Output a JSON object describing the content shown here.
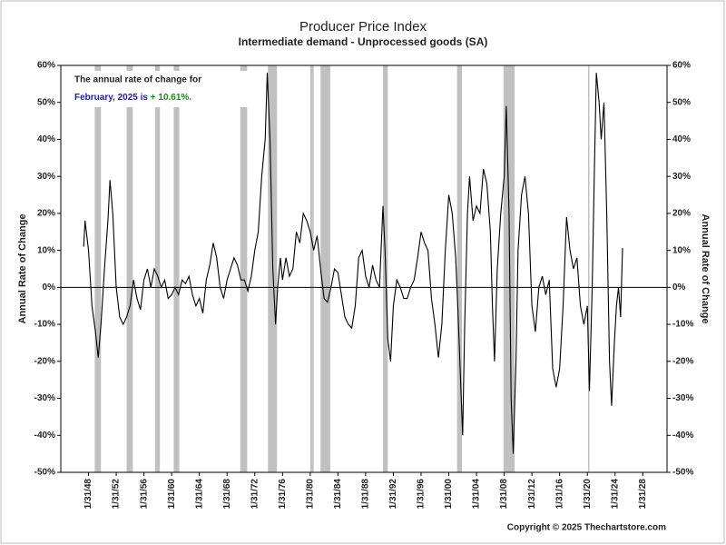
{
  "chart_data": {
    "type": "line",
    "title": "Producer Price Index",
    "subtitle": "Intermediate demand - Unprocessed goods (SA)",
    "y_label": "Annual Rate of Change",
    "y2_label": "Annual Rate of Change",
    "copyright": "Copyright © 2025 Thechartstore.com",
    "annotation": {
      "lines": [
        "The annual rate of change for",
        "February, 2025 is"
      ],
      "value_text": "+ 10.61%.",
      "color": "#1a1adf",
      "value_color": "#109010"
    },
    "xlim": [
      1944,
      2031.5
    ],
    "xticks": [
      {
        "value": 1948,
        "label": "1/31/48"
      },
      {
        "value": 1952,
        "label": "1/31/52"
      },
      {
        "value": 1956,
        "label": "1/31/56"
      },
      {
        "value": 1960,
        "label": "1/31/60"
      },
      {
        "value": 1964,
        "label": "1/31/64"
      },
      {
        "value": 1968,
        "label": "1/31/68"
      },
      {
        "value": 1972,
        "label": "1/31/72"
      },
      {
        "value": 1976,
        "label": "1/31/76"
      },
      {
        "value": 1980,
        "label": "1/31/80"
      },
      {
        "value": 1984,
        "label": "1/31/84"
      },
      {
        "value": 1988,
        "label": "1/31/88"
      },
      {
        "value": 1992,
        "label": "1/31/92"
      },
      {
        "value": 1996,
        "label": "1/31/96"
      },
      {
        "value": 2000,
        "label": "1/31/00"
      },
      {
        "value": 2004,
        "label": "1/31/04"
      },
      {
        "value": 2008,
        "label": "1/31/08"
      },
      {
        "value": 2012,
        "label": "1/31/12"
      },
      {
        "value": 2016,
        "label": "1/31/16"
      },
      {
        "value": 2020,
        "label": "1/31/20"
      },
      {
        "value": 2024,
        "label": "1/31/24"
      },
      {
        "value": 2028,
        "label": "1/31/28"
      }
    ],
    "ylim": [
      -50,
      60
    ],
    "yticks": [
      {
        "value": -50,
        "label": "-50%"
      },
      {
        "value": -40,
        "label": "-40%"
      },
      {
        "value": -30,
        "label": "-30%"
      },
      {
        "value": -20,
        "label": "-20%"
      },
      {
        "value": -10,
        "label": "-10%"
      },
      {
        "value": 0,
        "label": "0%"
      },
      {
        "value": 10,
        "label": "10%"
      },
      {
        "value": 20,
        "label": "20%"
      },
      {
        "value": 30,
        "label": "30%"
      },
      {
        "value": 40,
        "label": "40%"
      },
      {
        "value": 50,
        "label": "50%"
      },
      {
        "value": 60,
        "label": "60%"
      }
    ],
    "y2lim": [
      -50,
      60
    ],
    "y2ticks": [
      {
        "value": -50,
        "label": "-50%"
      },
      {
        "value": -40,
        "label": "-40%"
      },
      {
        "value": -30,
        "label": "-30%"
      },
      {
        "value": -20,
        "label": "-20%"
      },
      {
        "value": -10,
        "label": "-10%"
      },
      {
        "value": 0,
        "label": "0%"
      },
      {
        "value": 10,
        "label": "10%"
      },
      {
        "value": 20,
        "label": "20%"
      },
      {
        "value": 30,
        "label": "30%"
      },
      {
        "value": 40,
        "label": "40%"
      },
      {
        "value": 50,
        "label": "50%"
      },
      {
        "value": 60,
        "label": "60%"
      }
    ],
    "recession_color": "#c0c0c0",
    "recessions": [
      [
        1948.9,
        1949.8
      ],
      [
        1953.5,
        1954.4
      ],
      [
        1957.6,
        1958.3
      ],
      [
        1960.3,
        1961.1
      ],
      [
        1969.9,
        1970.9
      ],
      [
        1973.9,
        1975.2
      ],
      [
        1980,
        1980.5
      ],
      [
        1981.5,
        1982.9
      ],
      [
        1990.5,
        1991.2
      ],
      [
        2001.2,
        2001.9
      ],
      [
        2007.9,
        2009.5
      ],
      [
        2020.1,
        2020.3
      ]
    ],
    "series": [
      {
        "color": "#000000",
        "x": [
          1947.3,
          1947.5,
          1948,
          1948.5,
          1949,
          1949.4,
          1949.8,
          1950.3,
          1950.8,
          1951.1,
          1951.5,
          1952,
          1952.5,
          1953,
          1953.5,
          1954,
          1954.5,
          1955,
          1955.5,
          1956,
          1956.5,
          1957,
          1957.5,
          1958,
          1958.5,
          1959,
          1959.5,
          1960,
          1960.5,
          1961,
          1961.5,
          1962,
          1962.5,
          1963,
          1963.5,
          1964,
          1964.5,
          1965,
          1965.5,
          1966,
          1966.5,
          1967,
          1967.5,
          1968,
          1968.5,
          1969,
          1969.5,
          1970,
          1970.5,
          1971,
          1971.5,
          1972,
          1972.5,
          1973,
          1973.5,
          1973.8,
          1974.2,
          1974.6,
          1975,
          1975.3,
          1975.7,
          1976,
          1976.5,
          1977,
          1977.5,
          1978,
          1978.5,
          1979,
          1979.5,
          1980,
          1980.5,
          1981,
          1981.5,
          1982,
          1982.5,
          1983,
          1983.5,
          1984,
          1984.5,
          1985,
          1985.5,
          1986,
          1986.5,
          1987,
          1987.5,
          1988,
          1988.5,
          1989,
          1989.5,
          1990,
          1990.5,
          1990.8,
          1991.2,
          1991.6,
          1992,
          1992.5,
          1993,
          1993.5,
          1994,
          1994.5,
          1995,
          1995.5,
          1996,
          1996.5,
          1997,
          1997.5,
          1998,
          1998.5,
          1999,
          1999.5,
          2000,
          2000.5,
          2001,
          2001.3,
          2001.7,
          2002,
          2002.3,
          2002.7,
          2003,
          2003.5,
          2004,
          2004.5,
          2005,
          2005.5,
          2006,
          2006.3,
          2006.6,
          2007,
          2007.5,
          2008,
          2008.3,
          2008.7,
          2009,
          2009.3,
          2009.7,
          2010,
          2010.5,
          2011,
          2011.5,
          2012,
          2012.5,
          2013,
          2013.5,
          2014,
          2014.5,
          2015,
          2015.5,
          2016,
          2016.5,
          2017,
          2017.5,
          2018,
          2018.5,
          2019,
          2019.5,
          2020,
          2020.3,
          2020.7,
          2021,
          2021.3,
          2021.7,
          2022,
          2022.4,
          2022.8,
          2023.2,
          2023.5,
          2023.9,
          2024.2,
          2024.5,
          2024.8,
          2025.08
        ],
        "values": [
          11,
          18,
          10,
          -5,
          -12,
          -19,
          -10,
          5,
          18,
          29,
          20,
          0,
          -8,
          -10,
          -8,
          -5,
          2,
          -3,
          -6,
          2,
          5,
          0,
          5,
          3,
          0,
          2,
          -3,
          -2,
          0,
          -2,
          2,
          1,
          3,
          -2,
          -5,
          -3,
          -7,
          2,
          6,
          12,
          8,
          0,
          -3,
          2,
          5,
          8,
          6,
          2,
          2,
          -1,
          3,
          10,
          15,
          30,
          40,
          58,
          40,
          5,
          -10,
          0,
          8,
          2,
          8,
          3,
          5,
          15,
          12,
          20,
          18,
          15,
          10,
          14,
          5,
          -3,
          -4,
          0,
          5,
          4,
          -2,
          -8,
          -10,
          -11,
          -5,
          8,
          10,
          3,
          0,
          6,
          2,
          0,
          22,
          10,
          -14,
          -20,
          -5,
          2,
          0,
          -3,
          -3,
          0,
          2,
          8,
          15,
          12,
          10,
          -3,
          -10,
          -19,
          -10,
          10,
          25,
          20,
          8,
          -5,
          -25,
          -40,
          -10,
          20,
          30,
          18,
          22,
          20,
          32,
          28,
          15,
          -5,
          -20,
          5,
          20,
          30,
          49,
          20,
          -30,
          -45,
          -20,
          10,
          25,
          30,
          20,
          -5,
          -12,
          0,
          3,
          -2,
          2,
          -22,
          -27,
          -22,
          -5,
          19,
          10,
          5,
          8,
          -5,
          -10,
          -5,
          -28,
          0,
          30,
          58,
          50,
          40,
          50,
          20,
          -20,
          -32,
          -15,
          -5,
          0,
          -8,
          10.61
        ]
      }
    ]
  }
}
